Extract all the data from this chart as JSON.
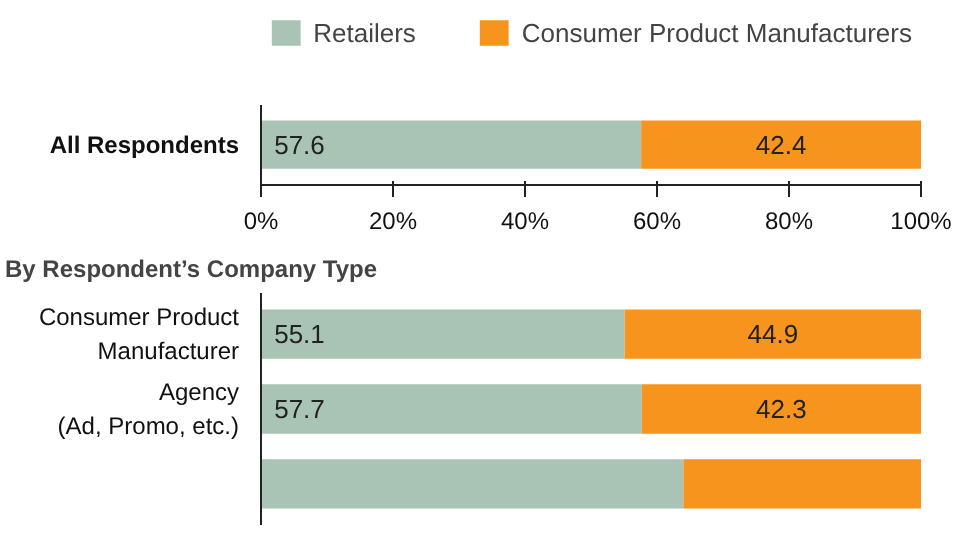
{
  "chart_data": [
    {
      "type": "bar",
      "orientation": "horizontal",
      "stacked": true,
      "categories": [
        "All Respondents"
      ],
      "series": [
        {
          "name": "Retailers",
          "color": "#a9c4b5",
          "values": [
            57.6
          ]
        },
        {
          "name": "Consumer Product Manufacturers",
          "color": "#f7941d",
          "values": [
            42.4
          ]
        }
      ],
      "xlim": [
        0,
        100
      ],
      "xticks": [
        {
          "value": 0,
          "label": "0%"
        },
        {
          "value": 20,
          "label": "20%"
        },
        {
          "value": 40,
          "label": "40%"
        },
        {
          "value": 60,
          "label": "60%"
        },
        {
          "value": 80,
          "label": "80%"
        },
        {
          "value": 100,
          "label": "100%"
        }
      ],
      "legend": "top",
      "data_labels": true,
      "grid": false
    },
    {
      "type": "bar",
      "orientation": "horizontal",
      "stacked": true,
      "title": "By Respondent’s Company Type",
      "categories": [
        "Consumer Product\nManufacturer",
        "Agency\n(Ad, Promo, etc.)",
        null
      ],
      "series": [
        {
          "color": "#a9c4b5",
          "values": [
            55.1,
            57.7,
            64
          ],
          "value_labels": [
            "55.1",
            "57.7",
            null
          ]
        },
        {
          "color": "#f7941d",
          "values": [
            44.9,
            42.3,
            36
          ],
          "value_labels": [
            "44.9",
            "42.3",
            null
          ]
        }
      ],
      "xlim": [
        0,
        100
      ],
      "tick_labels": "y",
      "grid": false
    }
  ]
}
